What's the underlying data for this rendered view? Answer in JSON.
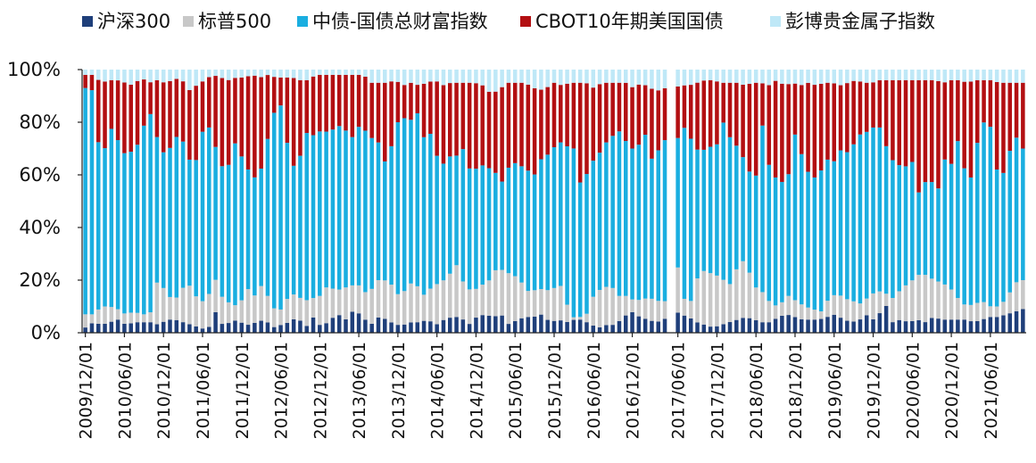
{
  "chart_data": {
    "type": "bar",
    "stacked": true,
    "percent": true,
    "ylim": [
      0,
      100
    ],
    "yticks": [
      "0%",
      "20%",
      "40%",
      "60%",
      "80%",
      "100%"
    ],
    "xtick_labels": [
      "2009/12/01",
      "2010/06/01",
      "2010/12/01",
      "2011/06/01",
      "2011/12/01",
      "2012/06/01",
      "2012/12/01",
      "2013/06/01",
      "2013/12/01",
      "2014/06/01",
      "2014/12/01",
      "2015/06/01",
      "2015/12/01",
      "2016/06/01",
      "2016/12/01",
      "2017/06/01",
      "2017/12/01",
      "2018/06/01",
      "2018/12/01",
      "2019/06/01",
      "2019/12/01",
      "2020/06/01",
      "2020/12/01",
      "2021/06/01"
    ],
    "months_per_label": 6,
    "gaps_after_label_index": [
      14
    ],
    "series": [
      {
        "name": "沪深300",
        "color": "#1f3f7a"
      },
      {
        "name": "标普500",
        "color": "#c8c8c8"
      },
      {
        "name": "中债-国债总财富指数",
        "color": "#1aaee0"
      },
      {
        "name": "CBOT10年期美国国债",
        "color": "#b30f12"
      },
      {
        "name": "彭博贵金属子指数",
        "color": "#bfe8f7"
      }
    ],
    "cum_profile_anchors": {
      "hs300": [
        2,
        4,
        3,
        4,
        5,
        3,
        4,
        4,
        4,
        3,
        5,
        5,
        4,
        3,
        2,
        1,
        8,
        2,
        5,
        4,
        3,
        4,
        5,
        2,
        3,
        4,
        6,
        2,
        6,
        2,
        5,
        7,
        5,
        9,
        6,
        3,
        6,
        5,
        3,
        3,
        4,
        4,
        5,
        3,
        5,
        6,
        6,
        3,
        6,
        7,
        6,
        7,
        3,
        5,
        6,
        6,
        7,
        4,
        5,
        4,
        5,
        5,
        3,
        2,
        3,
        3,
        6,
        8,
        6,
        5,
        4,
        5,
        9,
        7,
        6,
        4,
        3,
        2,
        3,
        4,
        5,
        6,
        5,
        4,
        4,
        6,
        7,
        6,
        5,
        5,
        5,
        6,
        7,
        5,
        4,
        5,
        7,
        4,
        12,
        4,
        5,
        4,
        5,
        4,
        6,
        5,
        5,
        5,
        5,
        4,
        5,
        6,
        6,
        7,
        8,
        9
      ],
      "sp500": [
        7,
        7,
        10,
        10,
        9,
        7,
        8,
        7,
        7,
        21,
        15,
        12,
        17,
        18,
        12,
        12,
        21,
        13,
        11,
        10,
        17,
        14,
        19,
        10,
        8,
        13,
        15,
        12,
        13,
        14,
        18,
        16,
        17,
        18,
        18,
        14,
        20,
        20,
        18,
        13,
        19,
        18,
        14,
        18,
        19,
        22,
        26,
        17,
        16,
        18,
        20,
        25,
        23,
        22,
        19,
        15,
        17,
        16,
        17,
        18,
        6,
        5,
        7,
        15,
        17,
        18,
        14,
        14,
        12,
        13,
        13,
        12,
        12,
        30,
        13,
        12,
        24,
        23,
        22,
        20,
        18,
        29,
        24,
        17,
        15,
        10,
        11,
        14,
        12,
        10,
        9,
        8,
        13,
        15,
        13,
        12,
        11,
        14,
        16,
        15,
        13,
        17,
        19,
        22,
        22,
        20,
        19,
        17,
        13,
        10,
        11,
        12,
        10,
        10,
        13,
        19,
        20
      ],
      "cnbond": [
        93,
        92,
        62,
        79,
        74,
        68,
        69,
        73,
        86,
        75,
        68,
        71,
        77,
        66,
        65,
        78,
        78,
        64,
        62,
        72,
        66,
        60,
        58,
        72,
        84,
        87,
        63,
        64,
        76,
        75,
        77,
        76,
        79,
        77,
        74,
        80,
        74,
        74,
        65,
        72,
        84,
        79,
        85,
        74,
        76,
        62,
        67,
        67,
        70,
        60,
        64,
        63,
        61,
        57,
        65,
        64,
        62,
        60,
        67,
        68,
        73,
        71,
        70,
        54,
        64,
        67,
        72,
        75,
        77,
        70,
        70,
        76,
        65,
        71,
        75,
        73,
        78,
        73,
        68,
        71,
        70,
        80,
        73,
        70,
        63,
        57,
        80,
        59,
        59,
        55,
        76,
        67,
        59,
        59,
        66,
        65,
        70,
        68,
        75,
        76,
        78,
        78,
        67,
        64,
        63,
        65,
        50,
        62,
        51,
        66,
        64,
        76,
        52,
        70,
        80,
        78,
        55,
        66,
        75,
        70
      ],
      "cbot": [
        98,
        98,
        95,
        96,
        96,
        95,
        94,
        97,
        95,
        96,
        95,
        96,
        97,
        92,
        94,
        96,
        98,
        97,
        96,
        97,
        97,
        98,
        97,
        98,
        97,
        97,
        97,
        96,
        96,
        98,
        98,
        98,
        98,
        98,
        98,
        98,
        95,
        95,
        95,
        96,
        94,
        95,
        94,
        95,
        96,
        94,
        95,
        95,
        95,
        95,
        94,
        91,
        92,
        95,
        95,
        95,
        94,
        92,
        93,
        95,
        94,
        95,
        95,
        95,
        93,
        95,
        95,
        95,
        95,
        93,
        95,
        93,
        92,
        93,
        93,
        94,
        94,
        95,
        96,
        96,
        95,
        95,
        95,
        94,
        95,
        95,
        94,
        96,
        94,
        95,
        94,
        95,
        94,
        95,
        95,
        94,
        95,
        96,
        95,
        95,
        96,
        96,
        96,
        96,
        96,
        96,
        96,
        96,
        95,
        96,
        96,
        95,
        96,
        96,
        96,
        95,
        95,
        95,
        95
      ]
    }
  },
  "legend": [
    {
      "label": "沪深300",
      "color": "#1f3f7a"
    },
    {
      "label": "标普500",
      "color": "#c8c8c8"
    },
    {
      "label": "中债-国债总财富指数",
      "color": "#1aaee0"
    },
    {
      "label": "CBOT10年期美国国债",
      "color": "#b30f12"
    },
    {
      "label": "彭博贵金属子指数",
      "color": "#bfe8f7"
    }
  ]
}
